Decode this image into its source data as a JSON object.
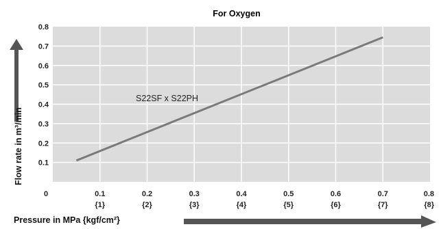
{
  "chart_data": {
    "type": "line",
    "title": "For Oxygen",
    "xlabel": "Pressure in MPa {kgf/cm²}",
    "ylabel": "Flow rate in m³/min",
    "xlim": [
      0,
      0.8
    ],
    "ylim": [
      0,
      0.8
    ],
    "x_ticks": [
      "0",
      "0.1",
      "0.2",
      "0.3",
      "0.4",
      "0.5",
      "0.6",
      "0.7",
      "0.8"
    ],
    "x_tick_sublabels": [
      "",
      "{1}",
      "{2}",
      "{3}",
      "{4}",
      "{5}",
      "{6}",
      "{7}",
      "{8}"
    ],
    "y_ticks": [
      "0.1",
      "0.2",
      "0.3",
      "0.4",
      "0.5",
      "0.6",
      "0.7",
      "0.8"
    ],
    "grid": true,
    "series": [
      {
        "name": "S22SF x S22PH",
        "x": [
          0.05,
          0.7
        ],
        "y": [
          0.11,
          0.745
        ]
      }
    ],
    "colors": {
      "plot_background": "#dcdcdc",
      "grid": "#ffffff",
      "line": "#7a7a7a",
      "arrow": "#555555"
    }
  }
}
